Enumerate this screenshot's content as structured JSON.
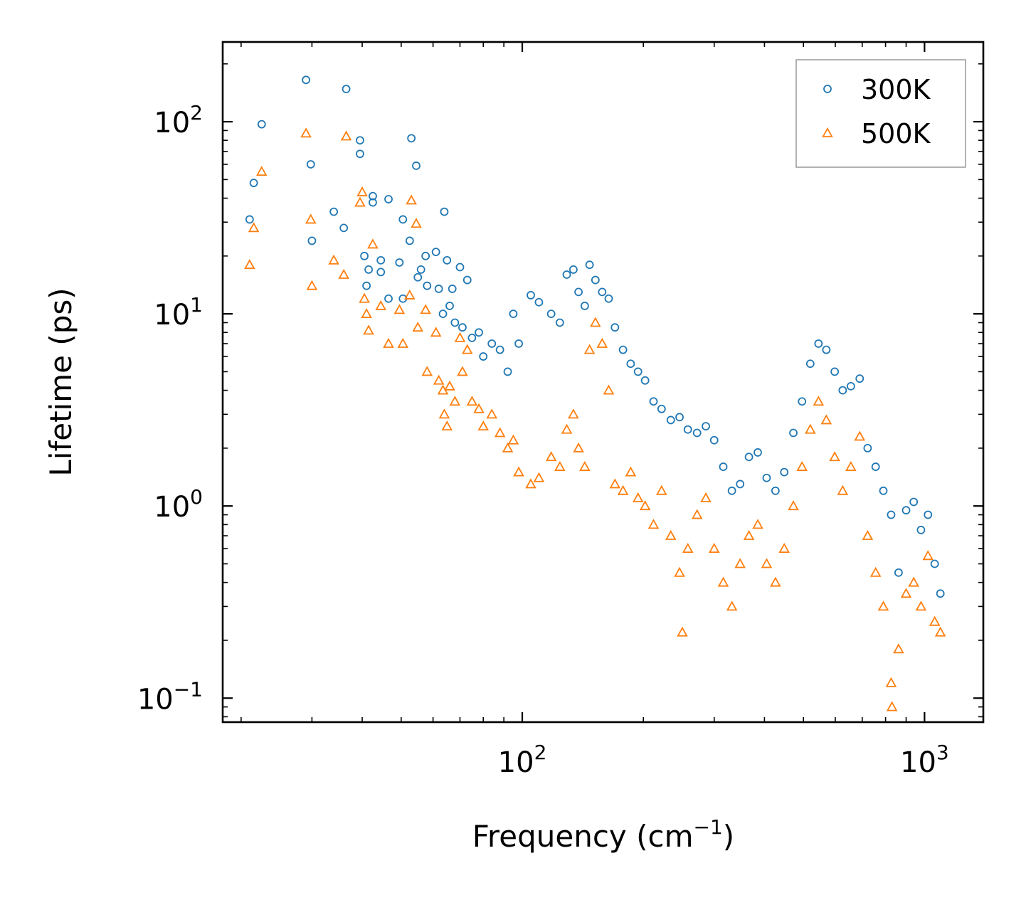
{
  "chart_data": {
    "type": "scatter",
    "title": "",
    "xlabel": "Frequency (cm",
    "xlabel_sup": "−1",
    "xlabel_end": ")",
    "ylabel": "Lifetime (ps)",
    "xscale": "log",
    "yscale": "log",
    "xlim": [
      18,
      1400
    ],
    "ylim": [
      0.075,
      260
    ],
    "x_ticks": [
      {
        "value": 100,
        "base": "10",
        "exp": "2"
      },
      {
        "value": 1000,
        "base": "10",
        "exp": "3"
      }
    ],
    "y_ticks": [
      {
        "value": 0.1,
        "base": "10",
        "exp": "−1"
      },
      {
        "value": 1,
        "base": "10",
        "exp": "0"
      },
      {
        "value": 10,
        "base": "10",
        "exp": "1"
      },
      {
        "value": 100,
        "base": "10",
        "exp": "2"
      }
    ],
    "legend_position": "top-right",
    "series": [
      {
        "name": "300K",
        "marker": "circle",
        "color": "#1f77b4",
        "points": [
          [
            21,
            31
          ],
          [
            21.5,
            48
          ],
          [
            22.5,
            97
          ],
          [
            29,
            165
          ],
          [
            29.8,
            60
          ],
          [
            30,
            24
          ],
          [
            34,
            34
          ],
          [
            36,
            28
          ],
          [
            36.5,
            148
          ],
          [
            39.5,
            80
          ],
          [
            39.5,
            68
          ],
          [
            40.5,
            20
          ],
          [
            41,
            14
          ],
          [
            41.5,
            17
          ],
          [
            42.5,
            38
          ],
          [
            42.5,
            41
          ],
          [
            44.5,
            16.5
          ],
          [
            44.5,
            19
          ],
          [
            46.5,
            12
          ],
          [
            46.5,
            39.5
          ],
          [
            49.5,
            18.5
          ],
          [
            50.5,
            31
          ],
          [
            50.5,
            12
          ],
          [
            52.5,
            24
          ],
          [
            53,
            82
          ],
          [
            54.5,
            59
          ],
          [
            55,
            15.5
          ],
          [
            56,
            17
          ],
          [
            57.5,
            20
          ],
          [
            58,
            14
          ],
          [
            61,
            21
          ],
          [
            62,
            13.5
          ],
          [
            63.5,
            10
          ],
          [
            64,
            34
          ],
          [
            65,
            19
          ],
          [
            66,
            11
          ],
          [
            67,
            13.5
          ],
          [
            68,
            9
          ],
          [
            70,
            17.5
          ],
          [
            71,
            8.5
          ],
          [
            73,
            15
          ],
          [
            75,
            7.5
          ],
          [
            78,
            8
          ],
          [
            80,
            6
          ],
          [
            84,
            7
          ],
          [
            88,
            6.5
          ],
          [
            92,
            5
          ],
          [
            95,
            10
          ],
          [
            98,
            7
          ],
          [
            105,
            12.5
          ],
          [
            110,
            11.5
          ],
          [
            118,
            10
          ],
          [
            124,
            9
          ],
          [
            129,
            16
          ],
          [
            134,
            17
          ],
          [
            138,
            13
          ],
          [
            143,
            11
          ],
          [
            147,
            18
          ],
          [
            152,
            15
          ],
          [
            158,
            13
          ],
          [
            164,
            12
          ],
          [
            170,
            8.5
          ],
          [
            178,
            6.5
          ],
          [
            186,
            5.5
          ],
          [
            194,
            5
          ],
          [
            202,
            4.5
          ],
          [
            212,
            3.5
          ],
          [
            222,
            3.2
          ],
          [
            234,
            2.8
          ],
          [
            246,
            2.9
          ],
          [
            258,
            2.5
          ],
          [
            272,
            2.4
          ],
          [
            286,
            2.6
          ],
          [
            300,
            2.2
          ],
          [
            316,
            1.6
          ],
          [
            332,
            1.2
          ],
          [
            348,
            1.3
          ],
          [
            366,
            1.8
          ],
          [
            385,
            1.9
          ],
          [
            405,
            1.4
          ],
          [
            426,
            1.2
          ],
          [
            448,
            1.5
          ],
          [
            472,
            2.4
          ],
          [
            496,
            3.5
          ],
          [
            520,
            5.5
          ],
          [
            545,
            7
          ],
          [
            570,
            6.5
          ],
          [
            598,
            5
          ],
          [
            626,
            4
          ],
          [
            656,
            4.2
          ],
          [
            690,
            4.6
          ],
          [
            722,
            2
          ],
          [
            756,
            1.6
          ],
          [
            790,
            1.2
          ],
          [
            826,
            0.9
          ],
          [
            862,
            0.45
          ],
          [
            900,
            0.95
          ],
          [
            940,
            1.05
          ],
          [
            980,
            0.75
          ],
          [
            1020,
            0.9
          ],
          [
            1060,
            0.5
          ],
          [
            1095,
            0.35
          ]
        ]
      },
      {
        "name": "500K",
        "marker": "triangle",
        "color": "#ff7f0e",
        "points": [
          [
            21,
            18
          ],
          [
            21.5,
            28
          ],
          [
            22.5,
            55
          ],
          [
            29,
            87
          ],
          [
            29.8,
            31
          ],
          [
            30,
            14
          ],
          [
            34,
            19
          ],
          [
            36,
            16
          ],
          [
            36.5,
            84
          ],
          [
            39.5,
            38
          ],
          [
            40,
            43
          ],
          [
            40.5,
            12
          ],
          [
            41,
            10
          ],
          [
            41.5,
            8.2
          ],
          [
            42.5,
            23
          ],
          [
            44.5,
            11
          ],
          [
            46.5,
            7
          ],
          [
            49.5,
            10.5
          ],
          [
            50.5,
            7
          ],
          [
            52.5,
            12.5
          ],
          [
            53,
            39
          ],
          [
            54.5,
            29.5
          ],
          [
            55,
            8.5
          ],
          [
            57.5,
            10.5
          ],
          [
            58,
            5
          ],
          [
            61,
            8
          ],
          [
            62,
            4.5
          ],
          [
            63.5,
            4
          ],
          [
            64,
            3
          ],
          [
            65,
            2.6
          ],
          [
            66,
            4.2
          ],
          [
            68,
            3.5
          ],
          [
            70,
            7.5
          ],
          [
            71,
            5
          ],
          [
            73,
            6.5
          ],
          [
            75,
            3.5
          ],
          [
            78,
            3.2
          ],
          [
            80,
            2.6
          ],
          [
            84,
            3
          ],
          [
            88,
            2.4
          ],
          [
            92,
            2
          ],
          [
            95,
            2.2
          ],
          [
            98,
            1.5
          ],
          [
            105,
            1.3
          ],
          [
            110,
            1.4
          ],
          [
            118,
            1.8
          ],
          [
            124,
            1.6
          ],
          [
            129,
            2.5
          ],
          [
            134,
            3
          ],
          [
            138,
            2
          ],
          [
            143,
            1.6
          ],
          [
            147,
            6.5
          ],
          [
            152,
            9
          ],
          [
            158,
            7
          ],
          [
            164,
            4
          ],
          [
            170,
            1.3
          ],
          [
            178,
            1.2
          ],
          [
            186,
            1.5
          ],
          [
            194,
            1.1
          ],
          [
            202,
            1
          ],
          [
            212,
            0.8
          ],
          [
            222,
            1.2
          ],
          [
            234,
            0.7
          ],
          [
            246,
            0.45
          ],
          [
            250,
            0.22
          ],
          [
            258,
            0.6
          ],
          [
            272,
            0.9
          ],
          [
            286,
            1.1
          ],
          [
            300,
            0.6
          ],
          [
            316,
            0.4
          ],
          [
            332,
            0.3
          ],
          [
            348,
            0.5
          ],
          [
            366,
            0.7
          ],
          [
            385,
            0.8
          ],
          [
            405,
            0.5
          ],
          [
            426,
            0.4
          ],
          [
            448,
            0.6
          ],
          [
            472,
            1
          ],
          [
            496,
            1.6
          ],
          [
            520,
            2.5
          ],
          [
            545,
            3.5
          ],
          [
            570,
            2.8
          ],
          [
            598,
            1.8
          ],
          [
            626,
            1.2
          ],
          [
            656,
            1.6
          ],
          [
            690,
            2.3
          ],
          [
            722,
            0.7
          ],
          [
            756,
            0.45
          ],
          [
            790,
            0.3
          ],
          [
            826,
            0.12
          ],
          [
            830,
            0.09
          ],
          [
            862,
            0.18
          ],
          [
            900,
            0.35
          ],
          [
            940,
            0.4
          ],
          [
            980,
            0.3
          ],
          [
            1020,
            0.55
          ],
          [
            1060,
            0.25
          ],
          [
            1095,
            0.22
          ]
        ]
      }
    ]
  }
}
